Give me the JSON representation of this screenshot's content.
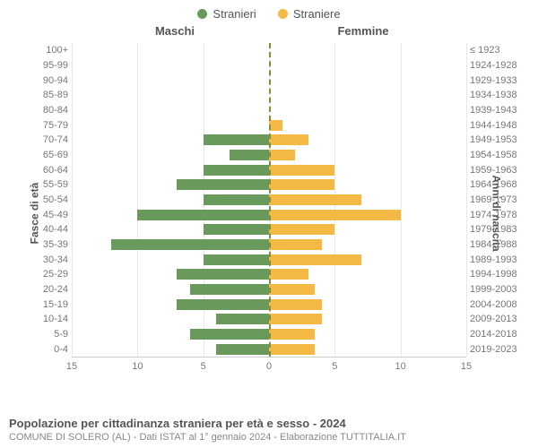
{
  "chart": {
    "type": "population-pyramid",
    "colors": {
      "male": "#6a9a5b",
      "female": "#f4b942",
      "center_line": "#8a8a3a",
      "grid": "#e8e8e8",
      "axis": "#cccccc",
      "text": "#555555",
      "subtext": "#888888",
      "background": "#ffffff"
    },
    "legend": {
      "male": "Stranieri",
      "female": "Straniere"
    },
    "headers": {
      "left": "Maschi",
      "right": "Femmine"
    },
    "y_left_title": "Fasce di età",
    "y_right_title": "Anni di nascita",
    "x_axis": {
      "min": -15,
      "max": 15,
      "ticks": [
        15,
        10,
        5,
        0,
        5,
        10,
        15
      ],
      "tick_positions_pct": [
        0,
        16.67,
        33.33,
        50,
        66.67,
        83.33,
        100
      ]
    },
    "rows": [
      {
        "age": "100+",
        "birth": "≤ 1923",
        "m": 0,
        "f": 0
      },
      {
        "age": "95-99",
        "birth": "1924-1928",
        "m": 0,
        "f": 0
      },
      {
        "age": "90-94",
        "birth": "1929-1933",
        "m": 0,
        "f": 0
      },
      {
        "age": "85-89",
        "birth": "1934-1938",
        "m": 0,
        "f": 0
      },
      {
        "age": "80-84",
        "birth": "1939-1943",
        "m": 0,
        "f": 0
      },
      {
        "age": "75-79",
        "birth": "1944-1948",
        "m": 0,
        "f": 1
      },
      {
        "age": "70-74",
        "birth": "1949-1953",
        "m": 5,
        "f": 3
      },
      {
        "age": "65-69",
        "birth": "1954-1958",
        "m": 3,
        "f": 2
      },
      {
        "age": "60-64",
        "birth": "1959-1963",
        "m": 5,
        "f": 5
      },
      {
        "age": "55-59",
        "birth": "1964-1968",
        "m": 7,
        "f": 5
      },
      {
        "age": "50-54",
        "birth": "1969-1973",
        "m": 5,
        "f": 7
      },
      {
        "age": "45-49",
        "birth": "1974-1978",
        "m": 10,
        "f": 10
      },
      {
        "age": "40-44",
        "birth": "1979-1983",
        "m": 5,
        "f": 5
      },
      {
        "age": "35-39",
        "birth": "1984-1988",
        "m": 12,
        "f": 4
      },
      {
        "age": "30-34",
        "birth": "1989-1993",
        "m": 5,
        "f": 7
      },
      {
        "age": "25-29",
        "birth": "1994-1998",
        "m": 7,
        "f": 3
      },
      {
        "age": "20-24",
        "birth": "1999-2003",
        "m": 6,
        "f": 3.5
      },
      {
        "age": "15-19",
        "birth": "2004-2008",
        "m": 7,
        "f": 4
      },
      {
        "age": "10-14",
        "birth": "2009-2013",
        "m": 4,
        "f": 4
      },
      {
        "age": "5-9",
        "birth": "2014-2018",
        "m": 6,
        "f": 3.5
      },
      {
        "age": "0-4",
        "birth": "2019-2023",
        "m": 4,
        "f": 3.5
      }
    ],
    "bar_height_pct": 72,
    "title_fontsize": 13,
    "label_fontsize": 11
  },
  "footer": {
    "title": "Popolazione per cittadinanza straniera per età e sesso - 2024",
    "sub": "COMUNE DI SOLERO (AL) - Dati ISTAT al 1° gennaio 2024 - Elaborazione TUTTITALIA.IT"
  }
}
